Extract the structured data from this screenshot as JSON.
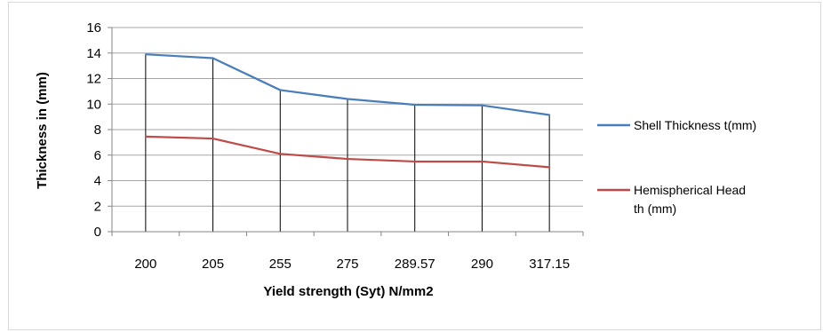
{
  "chart_data": {
    "type": "line",
    "categories": [
      "200",
      "205",
      "255",
      "275",
      "289.57",
      "290",
      "317.15"
    ],
    "series": [
      {
        "name": "Shell Thickness t(mm)",
        "color": "#4a7ebb",
        "values": [
          13.9,
          13.6,
          11.1,
          10.4,
          9.95,
          9.9,
          9.15
        ]
      },
      {
        "name": "Hemispherical Head th (mm)",
        "name_lines": [
          "Hemispherical Head",
          "th (mm)"
        ],
        "color": "#be4b48",
        "values": [
          7.45,
          7.3,
          6.1,
          5.7,
          5.5,
          5.5,
          5.05
        ]
      }
    ],
    "xlabel": "Yield strength (Syt) N/mm2",
    "ylabel": "Thickness in (mm)",
    "ylim": [
      0,
      16
    ],
    "yticks": [
      0,
      2,
      4,
      6,
      8,
      10,
      12,
      14,
      16
    ],
    "grid": true,
    "drop_lines": true,
    "legend_position": "right"
  }
}
